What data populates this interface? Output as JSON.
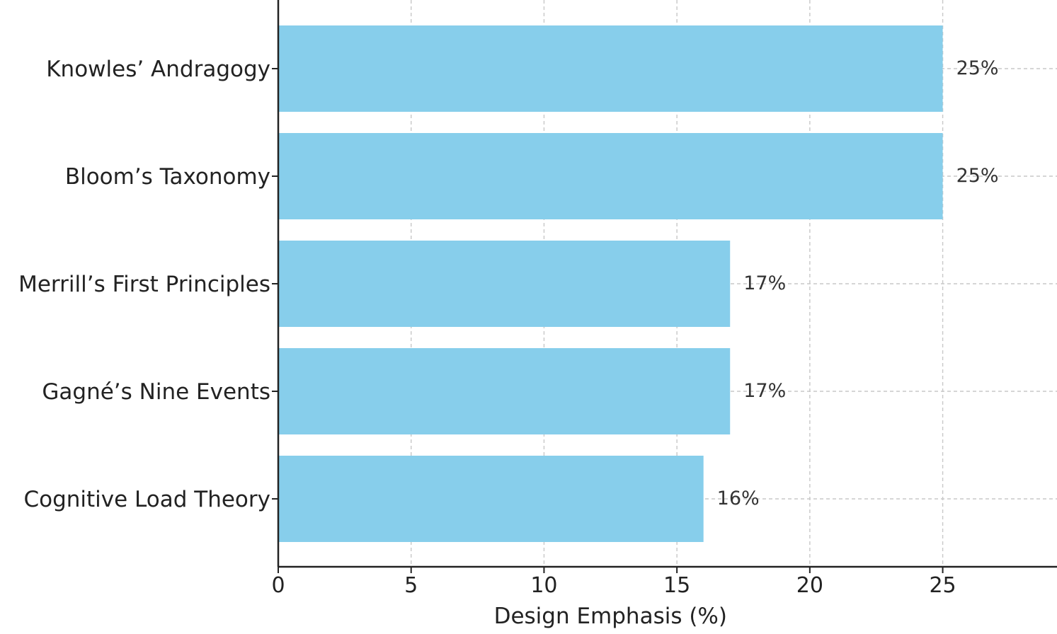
{
  "chart_data": {
    "type": "bar",
    "orientation": "horizontal",
    "title": "",
    "categories": [
      "Knowles’ Andragogy",
      "Bloom’s Taxonomy",
      "Merrill’s First Principles",
      "Gagné’s Nine Events",
      "Cognitive Load Theory"
    ],
    "values": [
      25,
      25,
      17,
      17,
      16
    ],
    "data_labels": [
      "25%",
      "25%",
      "17%",
      "17%",
      "16%"
    ],
    "xlabel": "Design Emphasis (%)",
    "ylabel": "",
    "xlim": [
      0,
      29.3
    ],
    "xticks": [
      0,
      5,
      10,
      15,
      20,
      25
    ],
    "grid": true,
    "bar_color": "#87CEEB",
    "grid_color": "#c8c8c8",
    "axis_color": "#222222"
  }
}
